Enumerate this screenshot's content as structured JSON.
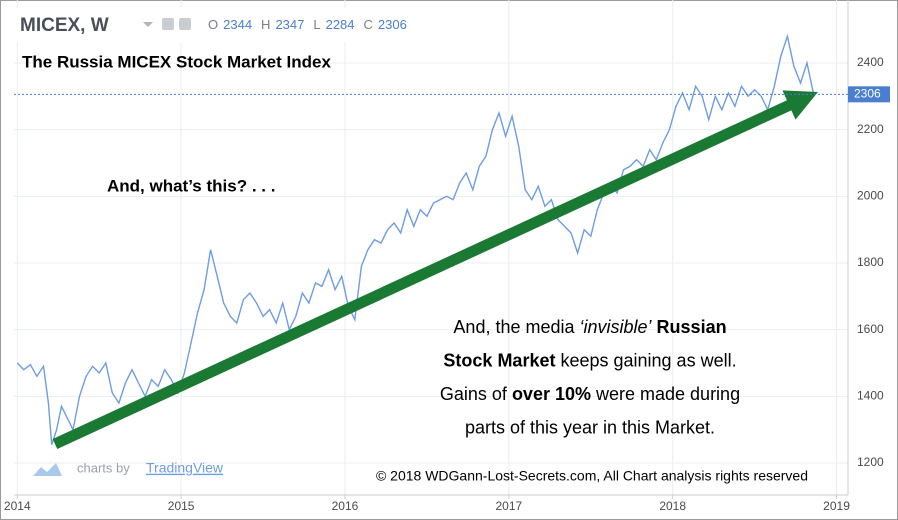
{
  "chart_data": {
    "type": "line",
    "symbol": "MICEX, W",
    "ohlc": [
      {
        "label": "O",
        "value": 2344
      },
      {
        "label": "H",
        "value": 2347
      },
      {
        "label": "L",
        "value": 2284
      },
      {
        "label": "C",
        "value": 2306
      }
    ],
    "title": "The Russia MICEX Stock Market Index",
    "annotation_question": "And, what’s this? . . .",
    "annotation_lines": [
      [
        {
          "text": "And, the media "
        },
        {
          "text": "‘invisible’",
          "style": "italic"
        },
        {
          "text": " Russian",
          "style": "bold"
        }
      ],
      [
        {
          "text": "Stock Market",
          "style": "bold"
        },
        {
          "text": " keeps gaining as well."
        }
      ],
      [
        {
          "text": "Gains of "
        },
        {
          "text": "over 10%",
          "style": "bold"
        },
        {
          "text": " were made during"
        }
      ],
      [
        {
          "text": "parts of this year in this Market."
        }
      ]
    ],
    "credit_prefix": "charts by",
    "credit_brand": "TradingView",
    "copyright": "© 2018 WDGann-Lost-Secrets.com, All Chart analysis rights reserved",
    "last_value": 2306,
    "color": "#6e9de0",
    "grid": true,
    "xlim": [
      2013.98,
      2019.07
    ],
    "xticks": [
      2014,
      2015,
      2016,
      2017,
      2018,
      2019
    ],
    "ylim": [
      1104,
      2589
    ],
    "yticks": [
      1200,
      1400,
      1600,
      1800,
      2000,
      2200,
      2400
    ],
    "x": [
      2014.0,
      2014.04,
      2014.08,
      2014.12,
      2014.16,
      2014.19,
      2014.21,
      2014.24,
      2014.27,
      2014.3,
      2014.34,
      2014.38,
      2014.42,
      2014.46,
      2014.5,
      2014.54,
      2014.58,
      2014.62,
      2014.66,
      2014.7,
      2014.74,
      2014.78,
      2014.82,
      2014.86,
      2014.9,
      2014.94,
      2014.98,
      2015.02,
      2015.06,
      2015.1,
      2015.14,
      2015.18,
      2015.22,
      2015.26,
      2015.3,
      2015.34,
      2015.38,
      2015.42,
      2015.46,
      2015.5,
      2015.54,
      2015.58,
      2015.62,
      2015.66,
      2015.7,
      2015.74,
      2015.78,
      2015.82,
      2015.86,
      2015.9,
      2015.94,
      2015.98,
      2016.02,
      2016.06,
      2016.1,
      2016.14,
      2016.18,
      2016.22,
      2016.26,
      2016.3,
      2016.34,
      2016.38,
      2016.42,
      2016.46,
      2016.5,
      2016.54,
      2016.58,
      2016.62,
      2016.66,
      2016.7,
      2016.74,
      2016.78,
      2016.82,
      2016.86,
      2016.9,
      2016.94,
      2016.98,
      2017.02,
      2017.06,
      2017.1,
      2017.14,
      2017.18,
      2017.22,
      2017.26,
      2017.3,
      2017.34,
      2017.38,
      2017.42,
      2017.46,
      2017.5,
      2017.54,
      2017.58,
      2017.62,
      2017.66,
      2017.7,
      2017.74,
      2017.78,
      2017.82,
      2017.86,
      2017.9,
      2017.94,
      2017.98,
      2018.02,
      2018.06,
      2018.1,
      2018.14,
      2018.18,
      2018.22,
      2018.26,
      2018.3,
      2018.34,
      2018.38,
      2018.42,
      2018.46,
      2018.5,
      2018.54,
      2018.58,
      2018.62,
      2018.66,
      2018.7,
      2018.74,
      2018.78,
      2018.82,
      2018.86
    ],
    "values": [
      1500,
      1480,
      1495,
      1460,
      1490,
      1380,
      1255,
      1300,
      1370,
      1340,
      1300,
      1400,
      1460,
      1490,
      1470,
      1500,
      1410,
      1380,
      1440,
      1480,
      1440,
      1400,
      1450,
      1430,
      1480,
      1450,
      1410,
      1470,
      1560,
      1650,
      1720,
      1840,
      1760,
      1680,
      1640,
      1620,
      1690,
      1710,
      1680,
      1640,
      1660,
      1620,
      1680,
      1600,
      1640,
      1710,
      1680,
      1740,
      1730,
      1780,
      1720,
      1760,
      1670,
      1630,
      1790,
      1840,
      1870,
      1860,
      1900,
      1920,
      1890,
      1960,
      1910,
      1960,
      1940,
      1980,
      1990,
      2000,
      1990,
      2040,
      2070,
      2020,
      2090,
      2120,
      2200,
      2250,
      2180,
      2240,
      2150,
      2020,
      1990,
      2030,
      1970,
      1990,
      1930,
      1910,
      1890,
      1830,
      1900,
      1880,
      1960,
      2010,
      2040,
      2010,
      2080,
      2090,
      2110,
      2090,
      2140,
      2110,
      2160,
      2200,
      2270,
      2310,
      2260,
      2330,
      2300,
      2230,
      2300,
      2260,
      2310,
      2270,
      2330,
      2300,
      2320,
      2300,
      2260,
      2330,
      2420,
      2480,
      2390,
      2340,
      2400,
      2306
    ]
  }
}
